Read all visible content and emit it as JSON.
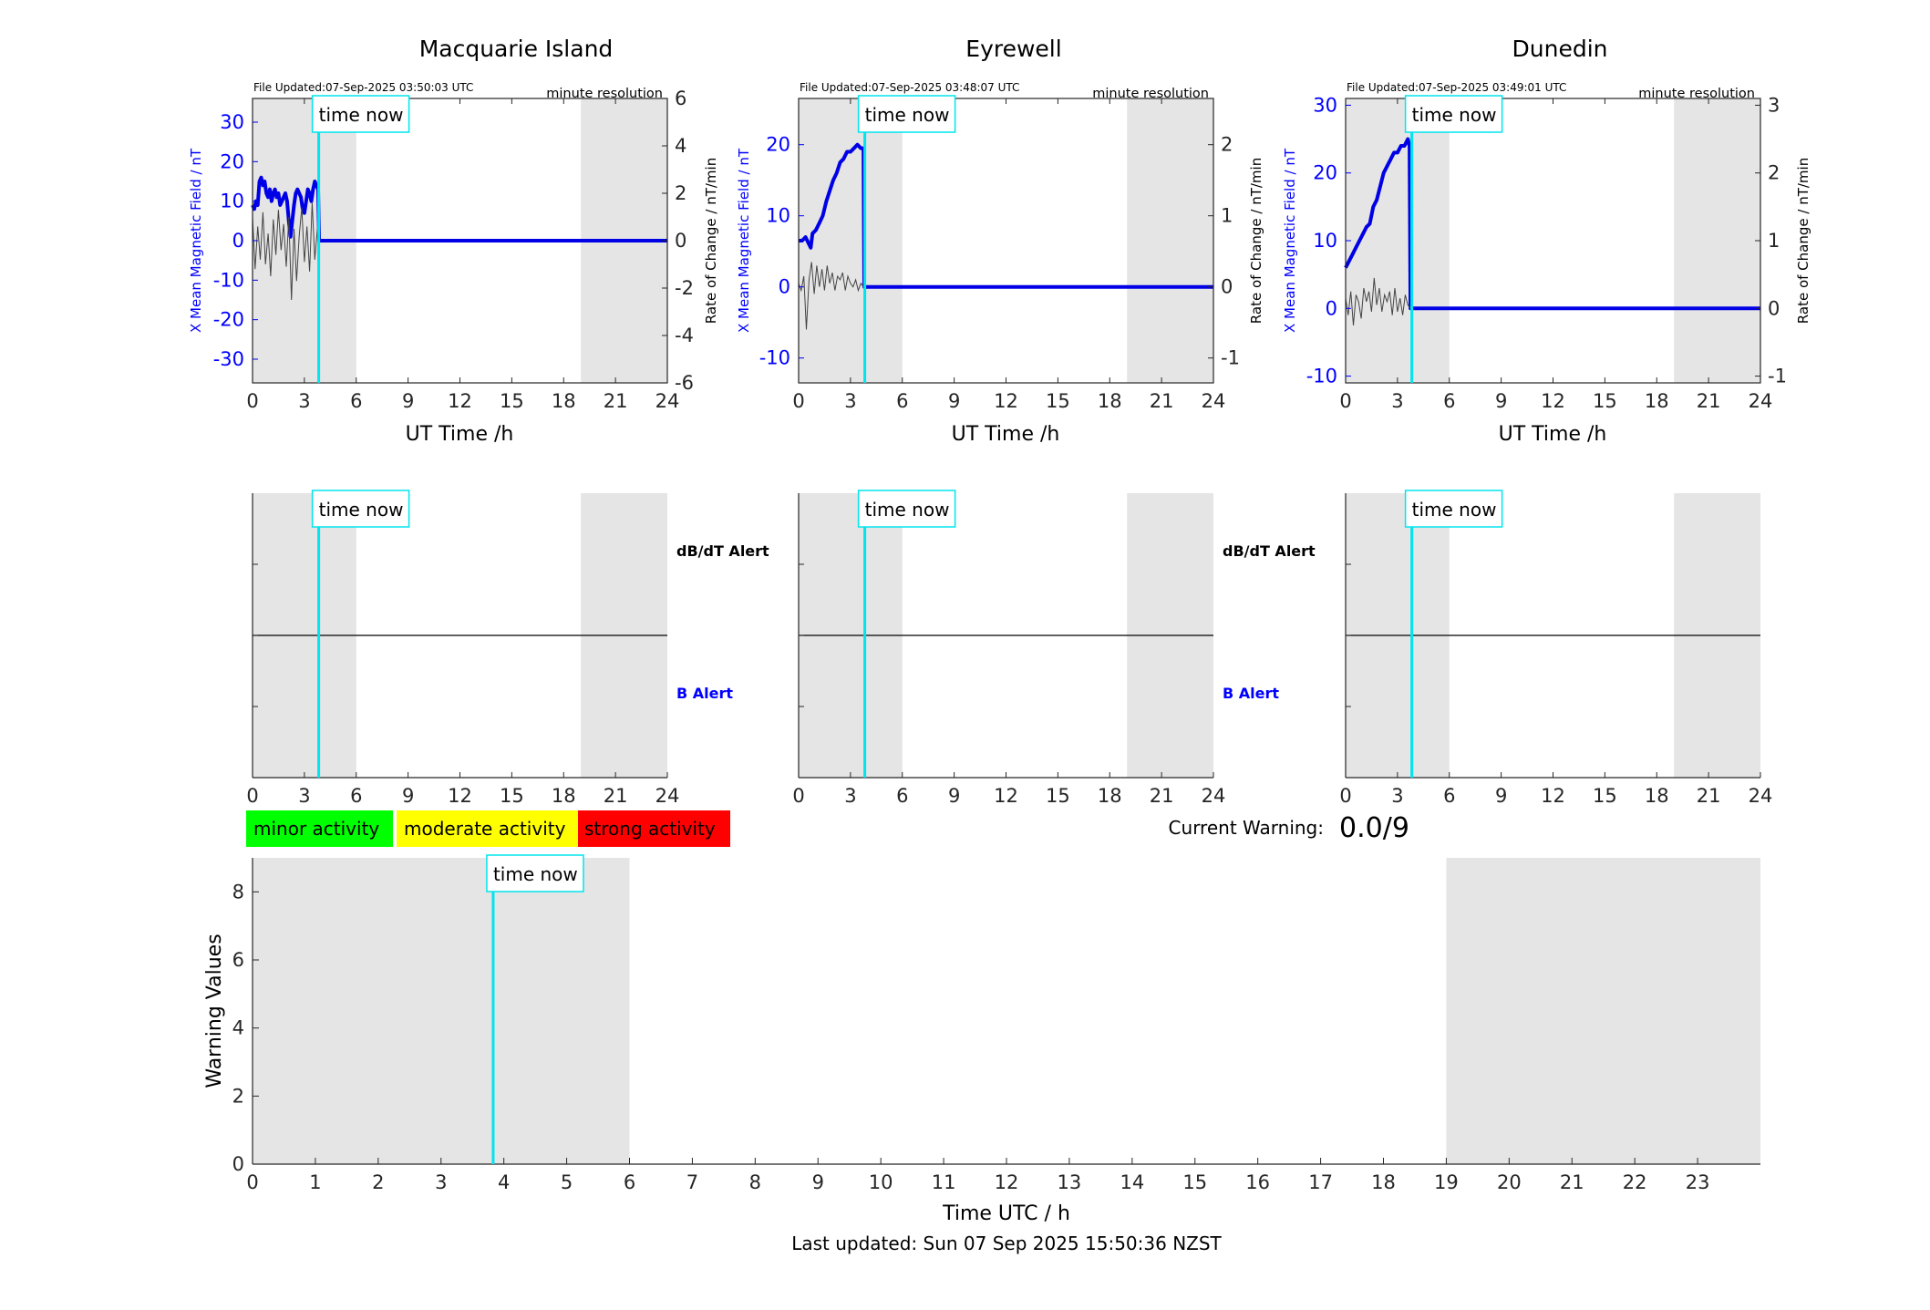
{
  "colors": {
    "field_line": "#0000e6",
    "rate_line": "#444444",
    "time_now_line": "#00e5ee",
    "daylight_band": "#e5e5e5",
    "minor": "#00ff00",
    "moderate": "#ffff00",
    "strong": "#ff0000",
    "b_alert_label": "#0000ff",
    "axis_blue": "#0000ff"
  },
  "time_now_label": "time now",
  "time_now_hour": 3.83,
  "resolution_label": "minute resolution",
  "x_axis_label": "UT Time /h",
  "left_axis_label": "X Mean Magnetic Field / nT",
  "right_axis_label": "Rate of Change / nT/min",
  "alert_labels": {
    "dbdt": "dB/dT Alert",
    "b": "B Alert"
  },
  "legend": {
    "minor": "minor activity",
    "moderate": "moderate activity",
    "strong": "strong activity"
  },
  "current_warning": {
    "label": "Current Warning:",
    "value": "0.0/9"
  },
  "footer": "Last updated: Sun 07 Sep 2025 15:50:36 NZST",
  "stations": [
    {
      "id": "macquarie",
      "title": "Macquarie Island",
      "file_updated": "File Updated:07-Sep-2025 03:50:03 UTC"
    },
    {
      "id": "eyrewell",
      "title": "Eyrewell",
      "file_updated": "File Updated:07-Sep-2025 03:48:07 UTC"
    },
    {
      "id": "dunedin",
      "title": "Dunedin",
      "file_updated": "File Updated:07-Sep-2025 03:49:01 UTC"
    }
  ],
  "chart_data": [
    {
      "type": "line",
      "title": "Macquarie Island",
      "xlabel": "UT Time /h",
      "ylabel": "X Mean Magnetic Field / nT",
      "y2label": "Rate of Change / nT/min",
      "xlim": [
        0,
        24
      ],
      "xticks": [
        0,
        3,
        6,
        9,
        12,
        15,
        18,
        21,
        24
      ],
      "ylim": [
        -36,
        36
      ],
      "yticks": [
        -30,
        -20,
        -10,
        0,
        10,
        20,
        30
      ],
      "y2lim": [
        -6,
        6
      ],
      "y2ticks": [
        -6,
        -4,
        -2,
        0,
        2,
        4,
        6
      ],
      "shaded_hours": [
        [
          0,
          6
        ],
        [
          19,
          24
        ]
      ],
      "series": [
        {
          "axis": "left",
          "x": [
            0,
            0.1,
            0.2,
            0.3,
            0.4,
            0.5,
            0.6,
            0.7,
            0.8,
            0.9,
            1.0,
            1.1,
            1.2,
            1.3,
            1.4,
            1.5,
            1.6,
            1.7,
            1.8,
            1.9,
            2.0,
            2.1,
            2.2,
            2.3,
            2.4,
            2.5,
            2.6,
            2.7,
            2.8,
            2.9,
            3.0,
            3.1,
            3.2,
            3.3,
            3.4,
            3.5,
            3.6,
            3.7,
            3.8,
            3.85,
            24
          ],
          "values": [
            9,
            8,
            10,
            9,
            15,
            16,
            14,
            15,
            12,
            11,
            13,
            10,
            12,
            13,
            11,
            12,
            9,
            10,
            11,
            12,
            10,
            5,
            1,
            5,
            9,
            12,
            13,
            12,
            11,
            8,
            7,
            10,
            13,
            12,
            10,
            13,
            15,
            14,
            13,
            0,
            0
          ]
        },
        {
          "axis": "right",
          "x": [
            0,
            0.15,
            0.3,
            0.45,
            0.6,
            0.75,
            0.9,
            1.05,
            1.2,
            1.35,
            1.5,
            1.65,
            1.8,
            1.95,
            2.1,
            2.25,
            2.4,
            2.55,
            2.7,
            2.85,
            3.0,
            3.15,
            3.3,
            3.45,
            3.6,
            3.75,
            3.85
          ],
          "values": [
            1.0,
            -1.2,
            0.6,
            -0.8,
            1.2,
            -1.0,
            0.3,
            -1.5,
            0.9,
            -0.6,
            1.3,
            -0.4,
            0.7,
            -1.1,
            1.0,
            -2.5,
            0.5,
            -1.7,
            0.2,
            1.4,
            -0.9,
            0.6,
            -1.3,
            1.6,
            -0.8,
            0.5,
            0
          ]
        }
      ]
    },
    {
      "type": "line",
      "title": "Eyrewell",
      "xlabel": "UT Time /h",
      "ylabel": "X Mean Magnetic Field / nT",
      "y2label": "Rate of Change / nT/min",
      "xlim": [
        0,
        24
      ],
      "xticks": [
        0,
        3,
        6,
        9,
        12,
        15,
        18,
        21,
        24
      ],
      "ylim": [
        -13.5,
        26.5
      ],
      "yticks": [
        -10,
        0,
        10,
        20
      ],
      "y2lim": [
        -1.35,
        2.65
      ],
      "y2ticks": [
        -1,
        0,
        1,
        2
      ],
      "shaded_hours": [
        [
          0,
          6
        ],
        [
          19,
          24
        ]
      ],
      "series": [
        {
          "axis": "left",
          "x": [
            0,
            0.2,
            0.4,
            0.6,
            0.7,
            0.8,
            1.0,
            1.2,
            1.4,
            1.6,
            1.8,
            2.0,
            2.2,
            2.4,
            2.6,
            2.8,
            3.0,
            3.2,
            3.4,
            3.6,
            3.75,
            3.8,
            24
          ],
          "values": [
            6.5,
            6.5,
            7,
            6,
            5.5,
            7.5,
            8,
            9,
            10,
            12,
            13.5,
            15,
            16,
            17.5,
            18,
            19,
            19,
            19.5,
            20,
            19.5,
            19.5,
            0,
            0
          ]
        },
        {
          "axis": "right",
          "x": [
            0,
            0.15,
            0.3,
            0.45,
            0.6,
            0.75,
            0.9,
            1.05,
            1.2,
            1.35,
            1.5,
            1.65,
            1.8,
            1.95,
            2.1,
            2.25,
            2.4,
            2.55,
            2.7,
            2.85,
            3.0,
            3.15,
            3.3,
            3.45,
            3.6,
            3.75
          ],
          "values": [
            0.05,
            -0.05,
            0.15,
            -0.6,
            0.1,
            0.35,
            -0.1,
            0.3,
            0.0,
            0.25,
            -0.05,
            0.3,
            0.05,
            0.2,
            -0.05,
            0.15,
            0.1,
            0.2,
            -0.05,
            0.15,
            0.05,
            0.0,
            0.1,
            -0.05,
            0.05,
            0
          ]
        }
      ]
    },
    {
      "type": "line",
      "title": "Dunedin",
      "xlabel": "UT Time /h",
      "ylabel": "X Mean Magnetic Field / nT",
      "y2label": "Rate of Change / nT/min",
      "xlim": [
        0,
        24
      ],
      "xticks": [
        0,
        3,
        6,
        9,
        12,
        15,
        18,
        21,
        24
      ],
      "ylim": [
        -11,
        31
      ],
      "yticks": [
        -10,
        0,
        10,
        20,
        30
      ],
      "y2lim": [
        -1.1,
        3.1
      ],
      "y2ticks": [
        -1,
        0,
        1,
        2,
        3
      ],
      "shaded_hours": [
        [
          0,
          6
        ],
        [
          19,
          24
        ]
      ],
      "series": [
        {
          "axis": "left",
          "x": [
            0,
            0.2,
            0.4,
            0.6,
            0.8,
            1.0,
            1.2,
            1.4,
            1.6,
            1.8,
            2.0,
            2.2,
            2.4,
            2.6,
            2.8,
            3.0,
            3.2,
            3.4,
            3.6,
            3.7,
            3.75,
            24
          ],
          "values": [
            6,
            7,
            8,
            9,
            10,
            11,
            12,
            12.5,
            15,
            16,
            18,
            20,
            21,
            22,
            23,
            23,
            24,
            24,
            25,
            24,
            0,
            0
          ]
        },
        {
          "axis": "right",
          "x": [
            0,
            0.15,
            0.3,
            0.45,
            0.6,
            0.75,
            0.9,
            1.05,
            1.2,
            1.35,
            1.5,
            1.65,
            1.8,
            1.95,
            2.1,
            2.25,
            2.4,
            2.55,
            2.7,
            2.85,
            3.0,
            3.15,
            3.3,
            3.45,
            3.6,
            3.75
          ],
          "values": [
            0.15,
            -0.1,
            0.25,
            -0.25,
            0.2,
            0.1,
            -0.15,
            0.3,
            0.1,
            0.25,
            -0.05,
            0.45,
            0.05,
            0.3,
            -0.05,
            0.2,
            0.1,
            0.25,
            -0.1,
            0.3,
            -0.05,
            0.15,
            -0.1,
            0.2,
            0.05,
            0
          ]
        }
      ]
    },
    {
      "type": "line",
      "title": "",
      "xlabel": "Time UTC / h",
      "ylabel": "Warning Values",
      "xlim": [
        0,
        24
      ],
      "xticks": [
        0,
        1,
        2,
        3,
        4,
        5,
        6,
        7,
        8,
        9,
        10,
        11,
        12,
        13,
        14,
        15,
        16,
        17,
        18,
        19,
        20,
        21,
        22,
        23
      ],
      "ylim": [
        0,
        9
      ],
      "yticks": [
        0,
        2,
        4,
        6,
        8
      ],
      "shaded_hours": [
        [
          0,
          6
        ],
        [
          19,
          24
        ]
      ],
      "series": []
    }
  ]
}
